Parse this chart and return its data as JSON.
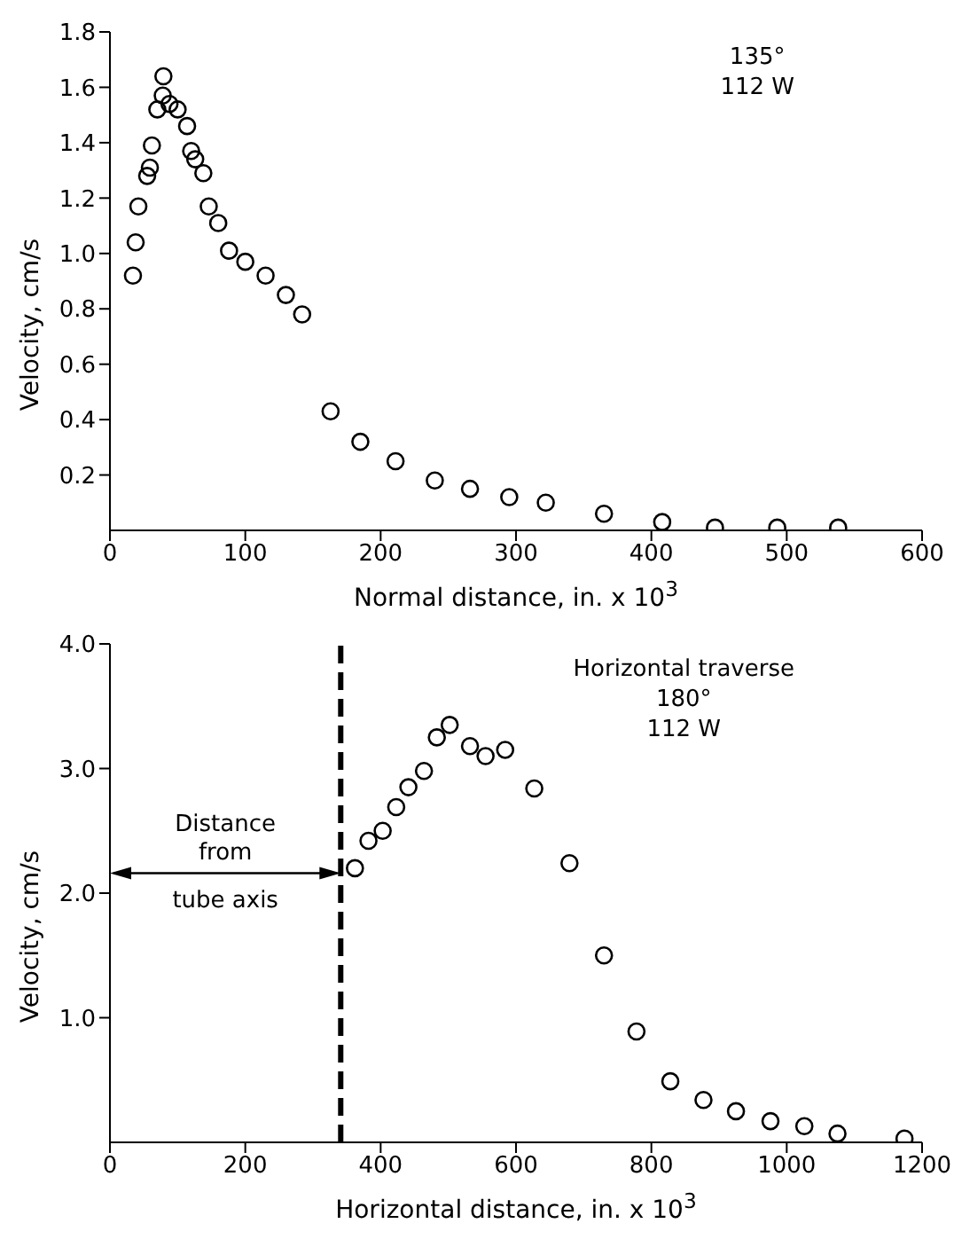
{
  "chart_data": [
    {
      "type": "scatter",
      "xlabel": "Normal distance,  in. x 10$^{3}$",
      "ylabel": "Velocity,  cm/s",
      "marker": "circle",
      "xlim": [
        0,
        600
      ],
      "xticks": [
        0,
        100,
        200,
        300,
        400,
        500,
        600
      ],
      "ylim": [
        0,
        1.8
      ],
      "yticks": [
        0.2,
        0.4,
        0.6,
        0.8,
        {
          "value": 1,
          "label": "1.0"
        },
        1.2,
        1.4,
        1.6,
        1.8
      ],
      "series": [
        {
          "color": "#000000",
          "x": [
            17,
            19,
            21,
            27.5,
            29.5,
            31,
            35,
            39,
            39.5,
            44,
            50,
            57,
            60,
            63,
            69,
            73,
            80,
            88,
            100,
            115,
            130,
            142,
            163,
            185,
            211,
            240,
            266,
            295,
            322,
            365,
            408,
            447,
            493,
            538
          ],
          "values": [
            0.92,
            1.04,
            1.17,
            1.28,
            1.31,
            1.39,
            1.52,
            1.57,
            1.64,
            1.54,
            1.52,
            1.46,
            1.37,
            1.34,
            1.29,
            1.17,
            1.11,
            1.01,
            0.97,
            0.92,
            0.85,
            0.78,
            0.43,
            0.32,
            0.25,
            0.18,
            0.15,
            0.12,
            0.1,
            0.06,
            0.03,
            0.01,
            0.01,
            0.01
          ]
        }
      ],
      "annotations": [
        "135°\n112 W"
      ]
    },
    {
      "type": "scatter",
      "xlabel": "Horizontal distance,  in. x 10$^{3}$",
      "ylabel": "Velocity,  cm/s",
      "marker": "circle",
      "xlim": [
        0,
        1200
      ],
      "xticks": [
        0,
        200,
        400,
        600,
        800,
        1000,
        1200
      ],
      "ylim": [
        0,
        4
      ],
      "yticks": [
        {
          "value": 1,
          "label": "1.0"
        },
        {
          "value": 2,
          "label": "2.0"
        },
        {
          "value": 3,
          "label": "3.0"
        },
        {
          "value": 4,
          "label": "4.0"
        }
      ],
      "series": [
        {
          "color": "#000000",
          "x": [
            362,
            382,
            403,
            423,
            441,
            464,
            483,
            502,
            532,
            555,
            584,
            627,
            679,
            730,
            778,
            828,
            877,
            925,
            976,
            1026,
            1075,
            1174
          ],
          "values": [
            2.2,
            2.42,
            2.5,
            2.69,
            2.85,
            2.98,
            3.25,
            3.35,
            3.18,
            3.1,
            3.15,
            2.84,
            2.24,
            1.5,
            0.89,
            0.49,
            0.34,
            0.25,
            0.17,
            0.13,
            0.07,
            0.03
          ]
        }
      ],
      "ref_lines": [
        {
          "axis": "x",
          "value": 341,
          "color": "#000000",
          "line_style": "dashed",
          "label": "Distance\nfrom\ntube axis"
        }
      ],
      "annotations": [
        "Horizontal traverse\n180°\n112 W"
      ]
    }
  ]
}
